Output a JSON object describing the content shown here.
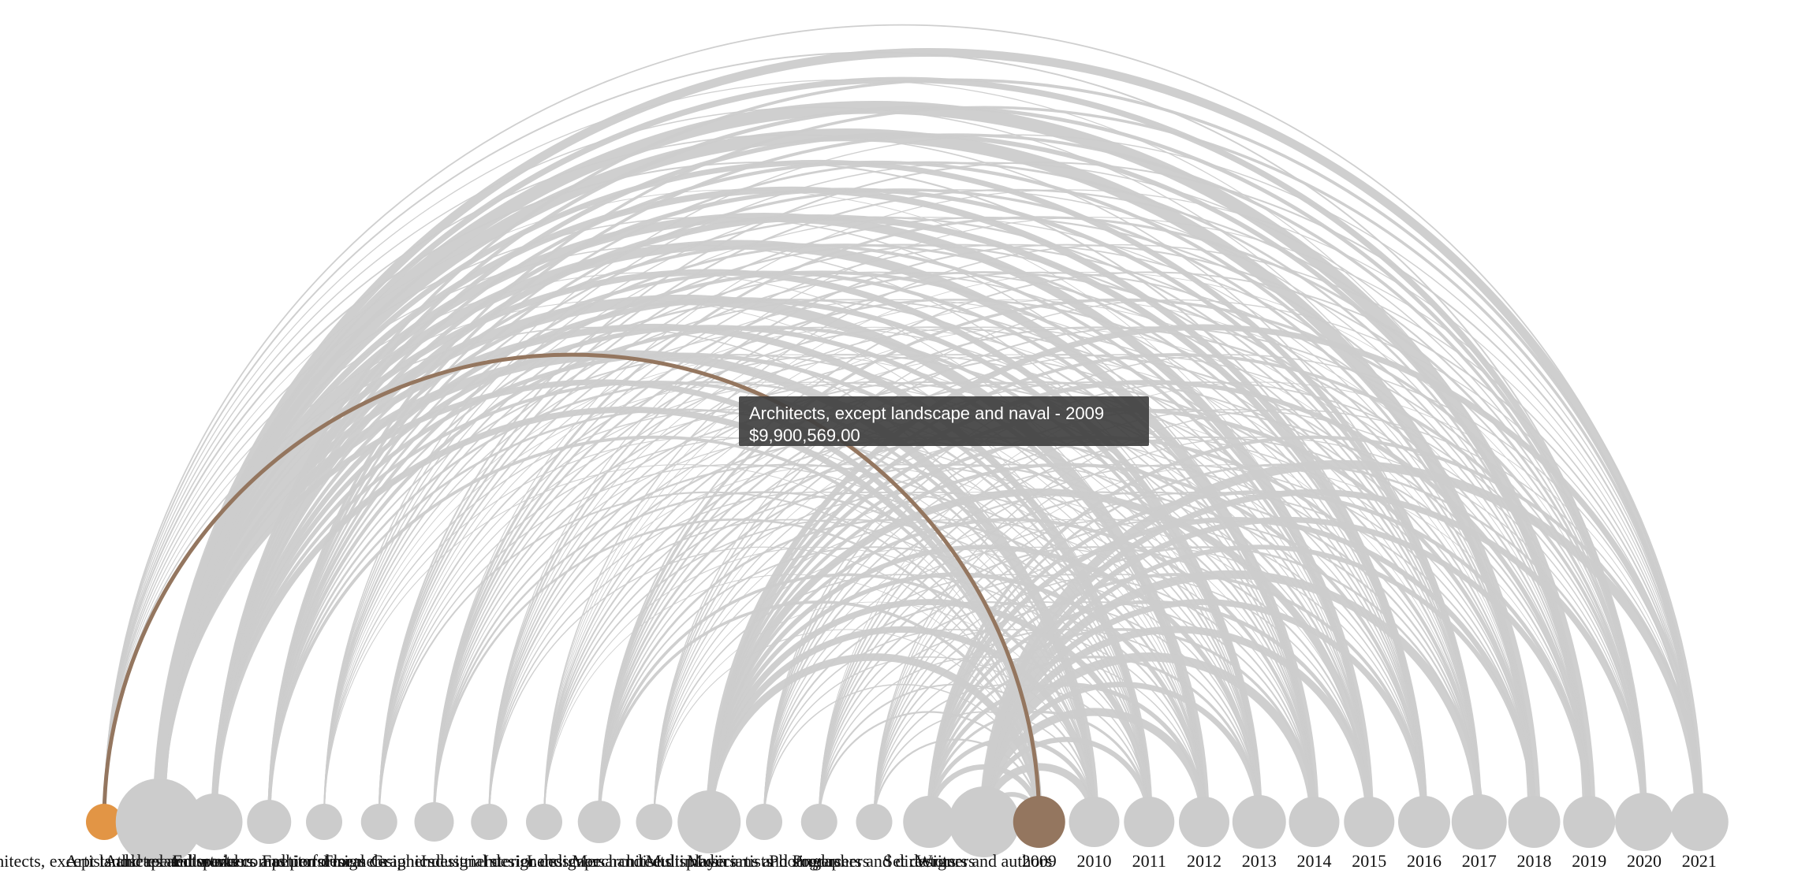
{
  "chart_data": {
    "type": "arc",
    "colors": {
      "link": "#cccccc",
      "node": "#cccccc",
      "highlight_link": "#94765f",
      "highlight_target": "#94765f",
      "highlight_source": "#e29545"
    },
    "occupation_nodes": [
      {
        "name": "Architects, except landscape and naval"
      },
      {
        "name": "Artists and related workers"
      },
      {
        "name": "Athletes and sports competitors"
      },
      {
        "name": "Entertainers and performers"
      },
      {
        "name": "Fashion designers"
      },
      {
        "name": "Floral designers"
      },
      {
        "name": "Graphic designers"
      },
      {
        "name": "Industrial designers"
      },
      {
        "name": "Interior designers"
      },
      {
        "name": "Landscape architects"
      },
      {
        "name": "Merchandise displayers"
      },
      {
        "name": "Multimedia artists"
      },
      {
        "name": "Musicians and singers"
      },
      {
        "name": "Photographers"
      },
      {
        "name": "Producers and directors"
      },
      {
        "name": "Set designers"
      },
      {
        "name": "Writers and authors"
      }
    ],
    "year_nodes": [
      "2009",
      "2010",
      "2011",
      "2012",
      "2013",
      "2014",
      "2015",
      "2016",
      "2017",
      "2018",
      "2019",
      "2020",
      "2021"
    ],
    "highlight": {
      "source": "Architects, except landscape and naval",
      "target": "2009"
    }
  },
  "tooltip": {
    "title": "Architects, except landscape and naval - 2009",
    "value": "$9,900,569.00"
  }
}
